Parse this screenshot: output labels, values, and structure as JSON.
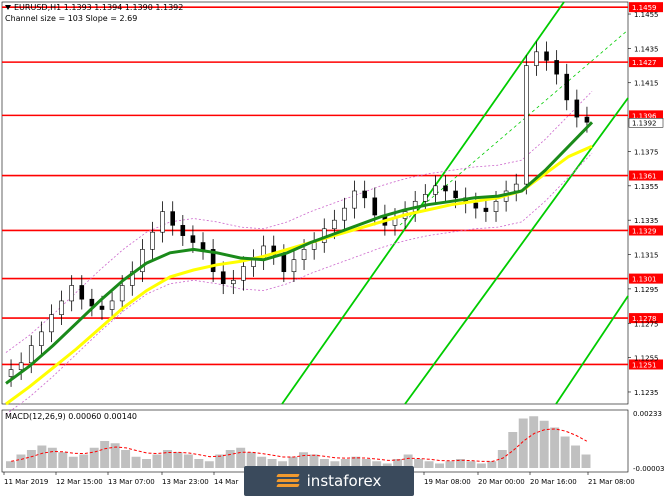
{
  "header": {
    "line1": "EURUSD,H1  1.1393 1.1394 1.1390 1.1392",
    "line2": "Channel size = 103 Slope = 2.69"
  },
  "macd_label": "MACD(12,26,9) 0.00060 0.00140",
  "watermark": "instaforex",
  "colors": {
    "level_line": "#ff0000",
    "price_label_bg": "#ff0000",
    "current_price_bg": "#ffffff",
    "ma_fast": "#1a8a1a",
    "ma_slow": "#ffff00",
    "channel": "#00cc00",
    "bollinger": "#cc66cc",
    "candle": "#000000",
    "histogram": "#c0c0c0",
    "signal": "#ff0000"
  },
  "chart_data": {
    "type": "line",
    "symbol": "EURUSD",
    "timeframe": "H1",
    "ylim": [
      1.1228,
      1.1462
    ],
    "y_ticks": [
      1.1235,
      1.1255,
      1.1275,
      1.1295,
      1.1315,
      1.1335,
      1.1355,
      1.1375,
      1.1415,
      1.1435,
      1.1455
    ],
    "x_ticks": [
      "11 Mar 2019",
      "12 Mar 15:00",
      "13 Mar 07:00",
      "13 Mar 23:00",
      "14 Mar",
      "19 Mar 08:00",
      "20 Mar 00:00",
      "20 Mar 16:00",
      "21 Mar 08:00"
    ],
    "levels": [
      {
        "value": 1.1459,
        "label": "1.1459"
      },
      {
        "value": 1.1427,
        "label": "1.1427"
      },
      {
        "value": 1.1396,
        "label": "1.1396"
      },
      {
        "value": 1.1361,
        "label": "1.1361"
      },
      {
        "value": 1.1329,
        "label": "1.1329"
      },
      {
        "value": 1.1301,
        "label": "1.1301"
      },
      {
        "value": 1.1278,
        "label": "1.1278"
      },
      {
        "value": 1.1251,
        "label": "1.1251"
      }
    ],
    "current_price": {
      "value": 1.1392,
      "label": "1.1392"
    },
    "price_path": [
      [
        1.1244,
        1.1248
      ],
      [
        1.1248,
        1.1252
      ],
      [
        1.1252,
        1.1262
      ],
      [
        1.1262,
        1.127
      ],
      [
        1.127,
        1.128
      ],
      [
        1.128,
        1.1288
      ],
      [
        1.1288,
        1.1297
      ],
      [
        1.1297,
        1.1289
      ],
      [
        1.1289,
        1.1285
      ],
      [
        1.1285,
        1.1283
      ],
      [
        1.1283,
        1.1288
      ],
      [
        1.1288,
        1.1297
      ],
      [
        1.1297,
        1.1305
      ],
      [
        1.1305,
        1.1318
      ],
      [
        1.1318,
        1.1328
      ],
      [
        1.1328,
        1.134
      ],
      [
        1.134,
        1.1332
      ],
      [
        1.1332,
        1.1326
      ],
      [
        1.1326,
        1.1322
      ],
      [
        1.1322,
        1.1318
      ],
      [
        1.1318,
        1.1305
      ],
      [
        1.1305,
        1.1298
      ],
      [
        1.1298,
        1.13
      ],
      [
        1.13,
        1.1308
      ],
      [
        1.1308,
        1.1312
      ],
      [
        1.1312,
        1.132
      ],
      [
        1.132,
        1.1315
      ],
      [
        1.1315,
        1.1305
      ],
      [
        1.1305,
        1.1312
      ],
      [
        1.1312,
        1.1318
      ],
      [
        1.1318,
        1.1322
      ],
      [
        1.1322,
        1.133
      ],
      [
        1.133,
        1.1335
      ],
      [
        1.1335,
        1.1342
      ],
      [
        1.1342,
        1.1352
      ],
      [
        1.1352,
        1.1348
      ],
      [
        1.1348,
        1.1338
      ],
      [
        1.1338,
        1.1332
      ],
      [
        1.1332,
        1.1336
      ],
      [
        1.1336,
        1.134
      ],
      [
        1.134,
        1.1346
      ],
      [
        1.1346,
        1.135
      ],
      [
        1.135,
        1.1355
      ],
      [
        1.1355,
        1.1352
      ],
      [
        1.1352,
        1.1348
      ],
      [
        1.1348,
        1.1345
      ],
      [
        1.1345,
        1.1342
      ],
      [
        1.1342,
        1.134
      ],
      [
        1.134,
        1.1346
      ],
      [
        1.1346,
        1.1352
      ],
      [
        1.1352,
        1.1356
      ],
      [
        1.1356,
        1.1425
      ],
      [
        1.1425,
        1.1433
      ],
      [
        1.1433,
        1.1428
      ],
      [
        1.1428,
        1.142
      ],
      [
        1.142,
        1.1405
      ],
      [
        1.1405,
        1.1395
      ],
      [
        1.1395,
        1.1392
      ]
    ],
    "ma_fast": [
      1.124,
      1.125,
      1.1262,
      1.1275,
      1.1288,
      1.13,
      1.131,
      1.1316,
      1.1318,
      1.1316,
      1.1313,
      1.1312,
      1.1316,
      1.1322,
      1.1327,
      1.1332,
      1.1337,
      1.1341,
      1.1344,
      1.1346,
      1.1348,
      1.1349,
      1.1352,
      1.1364,
      1.1378,
      1.1392
    ],
    "ma_slow": [
      1.1228,
      1.1238,
      1.1249,
      1.126,
      1.1272,
      1.1284,
      1.1294,
      1.1302,
      1.1306,
      1.1309,
      1.1311,
      1.1314,
      1.1318,
      1.1322,
      1.1326,
      1.133,
      1.1334,
      1.1338,
      1.1341,
      1.1344,
      1.1346,
      1.1348,
      1.1352,
      1.1362,
      1.1372,
      1.1378
    ],
    "macd": {
      "label": "MACD(12,26,9)",
      "values": [
        0.0003,
        0.0006,
        0.0008,
        0.001,
        0.0009,
        0.0007,
        0.0005,
        0.0006,
        0.0009,
        0.0012,
        0.0011,
        0.0008,
        0.0005,
        0.0004,
        0.0006,
        0.0008,
        0.0007,
        0.0006,
        0.0004,
        0.0003,
        0.0006,
        0.0008,
        0.0009,
        0.0007,
        0.0005,
        0.0004,
        0.0003,
        0.0005,
        0.0007,
        0.0006,
        0.0004,
        0.0003,
        0.0004,
        0.0005,
        0.0004,
        0.0003,
        0.0002,
        0.0004,
        0.0006,
        0.0004,
        0.0003,
        0.0002,
        0.0003,
        0.0004,
        0.0003,
        0.0002,
        0.0003,
        0.0008,
        0.0016,
        0.0022,
        0.0023,
        0.0021,
        0.0018,
        0.0014,
        0.001,
        0.0006
      ],
      "y_ticks": [
        "0.00233",
        "-0.000038"
      ]
    }
  }
}
